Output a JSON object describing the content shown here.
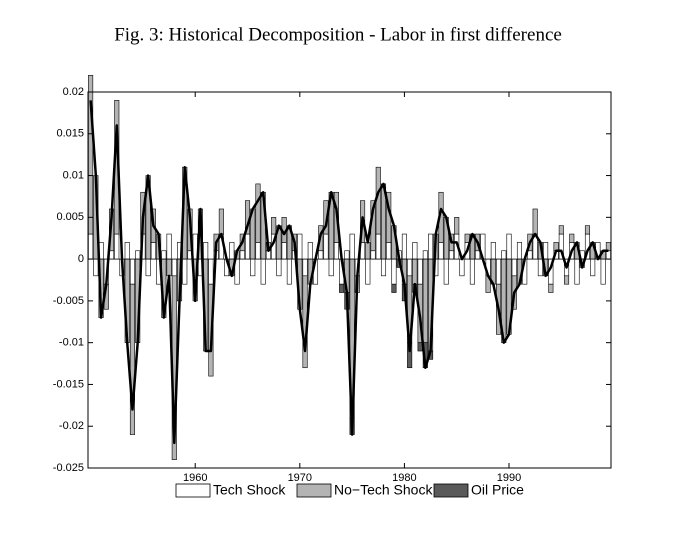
{
  "chart_data": {
    "type": "stacked_bar_line",
    "title": "Fig. 3: Historical Decomposition - Labor in first difference",
    "x": [
      1950,
      1950.5,
      1951,
      1951.5,
      1952,
      1952.5,
      1953,
      1953.5,
      1954,
      1954.5,
      1955,
      1955.5,
      1956,
      1956.5,
      1957,
      1957.5,
      1958,
      1958.5,
      1959,
      1959.5,
      1960,
      1960.5,
      1961,
      1961.5,
      1962,
      1962.5,
      1963,
      1963.5,
      1964,
      1964.5,
      1965,
      1965.5,
      1966,
      1966.5,
      1967,
      1967.5,
      1968,
      1968.5,
      1969,
      1969.5,
      1970,
      1970.5,
      1971,
      1971.5,
      1972,
      1972.5,
      1973,
      1973.5,
      1974,
      1974.5,
      1975,
      1975.5,
      1976,
      1976.5,
      1977,
      1977.5,
      1978,
      1978.5,
      1979,
      1979.5,
      1980,
      1980.5,
      1981,
      1981.5,
      1982,
      1982.5,
      1983,
      1983.5,
      1984,
      1984.5,
      1985,
      1985.5,
      1986,
      1986.5,
      1987,
      1987.5,
      1988,
      1988.5,
      1989,
      1989.5,
      1990,
      1990.5,
      1991,
      1991.5,
      1992,
      1992.5,
      1993,
      1993.5,
      1994,
      1994.5,
      1995,
      1995.5,
      1996,
      1996.5,
      1997,
      1997.5,
      1998,
      1998.5,
      1999,
      1999.5
    ],
    "series": [
      {
        "name": "Tech Shock",
        "color": "#ffffff",
        "values": [
          0.003,
          -0.002,
          0.002,
          -0.003,
          0.001,
          0.003,
          -0.002,
          0.002,
          -0.003,
          0.001,
          0.003,
          -0.002,
          0.002,
          -0.003,
          0.001,
          0.003,
          -0.002,
          0.002,
          -0.003,
          0.001,
          0.003,
          -0.002,
          0.002,
          -0.003,
          0.001,
          0.003,
          -0.002,
          0.002,
          -0.003,
          0.001,
          0.003,
          -0.002,
          0.002,
          -0.003,
          0.001,
          0.003,
          -0.002,
          0.002,
          -0.003,
          0.001,
          0.003,
          -0.002,
          0.002,
          -0.003,
          0.001,
          0.003,
          -0.002,
          0.002,
          -0.003,
          0.001,
          0.003,
          -0.002,
          0.002,
          -0.003,
          0.001,
          0.003,
          -0.002,
          0.002,
          -0.003,
          0.001,
          0.003,
          -0.002,
          0.002,
          -0.003,
          0.001,
          0.003,
          -0.002,
          0.002,
          -0.003,
          0.001,
          0.003,
          -0.002,
          0.002,
          -0.003,
          0.001,
          0.003,
          -0.002,
          0.002,
          -0.003,
          0.001,
          0.003,
          -0.002,
          0.002,
          -0.003,
          0.001,
          0.003,
          -0.002,
          0.002,
          -0.003,
          0.001,
          0.003,
          -0.002,
          0.002,
          -0.003,
          0.001,
          0.003,
          -0.002,
          0.002,
          -0.003,
          0.001
        ]
      },
      {
        "name": "No−Tech Shock",
        "color": "#b4b4b4",
        "values": [
          0.019,
          0.01,
          -0.007,
          -0.003,
          0.005,
          0.016,
          0,
          -0.01,
          -0.018,
          -0.01,
          0.005,
          0.01,
          0.004,
          0.003,
          -0.007,
          -0.002,
          -0.022,
          -0.005,
          0.011,
          0.005,
          -0.005,
          0.006,
          -0.011,
          -0.011,
          0.002,
          0.003,
          0,
          -0.002,
          0.001,
          0.002,
          0.004,
          0.006,
          0.007,
          0.008,
          0.001,
          0.002,
          0.004,
          0.003,
          0.004,
          0.002,
          -0.006,
          -0.011,
          -0.003,
          0,
          0.003,
          0.004,
          0.008,
          0.006,
          0,
          -0.004,
          -0.019,
          -0.002,
          0.005,
          0.002,
          0.006,
          0.008,
          0.009,
          0.006,
          0.004,
          0,
          -0.003,
          -0.008,
          -0.003,
          -0.007,
          -0.01,
          -0.011,
          0.003,
          0.006,
          0.005,
          0.002,
          0.002,
          0,
          0.001,
          0.003,
          0.002,
          0,
          -0.002,
          -0.003,
          -0.006,
          -0.01,
          -0.009,
          -0.004,
          -0.003,
          0,
          0.002,
          0.003,
          0.002,
          -0.002,
          -0.001,
          0.001,
          0.001,
          -0.001,
          0.001,
          0.002,
          -0.001,
          0.001,
          0.002,
          0,
          0.001,
          0.001
        ]
      },
      {
        "name": "Oil Price",
        "color": "#5a5a5a",
        "values": [
          0,
          0,
          0,
          0,
          0,
          0,
          0,
          0,
          0,
          0,
          0,
          0,
          0,
          0,
          0,
          0,
          0,
          0,
          0,
          0,
          0,
          0,
          0,
          0,
          0,
          0,
          0,
          0,
          0,
          0,
          0,
          0,
          0,
          0,
          0,
          0,
          0,
          0,
          0,
          0,
          0,
          0,
          0,
          0,
          0,
          0,
          0,
          0,
          -0.001,
          -0.002,
          -0.002,
          0,
          0,
          0,
          0,
          0,
          0,
          0,
          -0.001,
          -0.001,
          -0.002,
          -0.003,
          -0.001,
          -0.001,
          -0.003,
          -0.001,
          0,
          0,
          0,
          0,
          0,
          0,
          0,
          0,
          0,
          0,
          0,
          0,
          0,
          0,
          0,
          0,
          0,
          0,
          0,
          0,
          0,
          0,
          0,
          0,
          0,
          0,
          0,
          0,
          0,
          0,
          0,
          0,
          0,
          0
        ]
      }
    ],
    "line": {
      "color": "#000000",
      "values": [
        0.019,
        0.01,
        -0.007,
        -0.003,
        0.005,
        0.016,
        0,
        -0.01,
        -0.018,
        -0.01,
        0.005,
        0.01,
        0.004,
        0.003,
        -0.007,
        -0.002,
        -0.022,
        -0.005,
        0.011,
        0.005,
        -0.005,
        0.006,
        -0.011,
        -0.011,
        0.002,
        0.003,
        0,
        -0.002,
        0.001,
        0.002,
        0.004,
        0.006,
        0.007,
        0.008,
        0.001,
        0.002,
        0.004,
        0.003,
        0.004,
        0.002,
        -0.006,
        -0.011,
        -0.003,
        0,
        0.003,
        0.004,
        0.008,
        0.006,
        0,
        -0.004,
        -0.021,
        -0.002,
        0.005,
        0.002,
        0.006,
        0.008,
        0.009,
        0.006,
        0.004,
        0,
        -0.003,
        -0.011,
        -0.003,
        -0.007,
        -0.013,
        -0.011,
        0.003,
        0.006,
        0.005,
        0.002,
        0.002,
        0,
        0.001,
        0.003,
        0.002,
        0,
        -0.002,
        -0.003,
        -0.006,
        -0.01,
        -0.009,
        -0.004,
        -0.003,
        0,
        0.002,
        0.003,
        0.002,
        -0.002,
        -0.001,
        0.001,
        0.001,
        -0.001,
        0.001,
        0.002,
        -0.001,
        0.001,
        0.002,
        0,
        0.001,
        0.001
      ]
    },
    "xlim": [
      1949.75,
      1999.75
    ],
    "xticks": [
      1960,
      1970,
      1980,
      1990
    ],
    "ylim": [
      -0.025,
      0.02
    ],
    "yticks": [
      -0.025,
      -0.02,
      -0.015,
      -0.01,
      -0.005,
      0,
      0.005,
      0.01,
      0.015,
      0.02
    ]
  }
}
